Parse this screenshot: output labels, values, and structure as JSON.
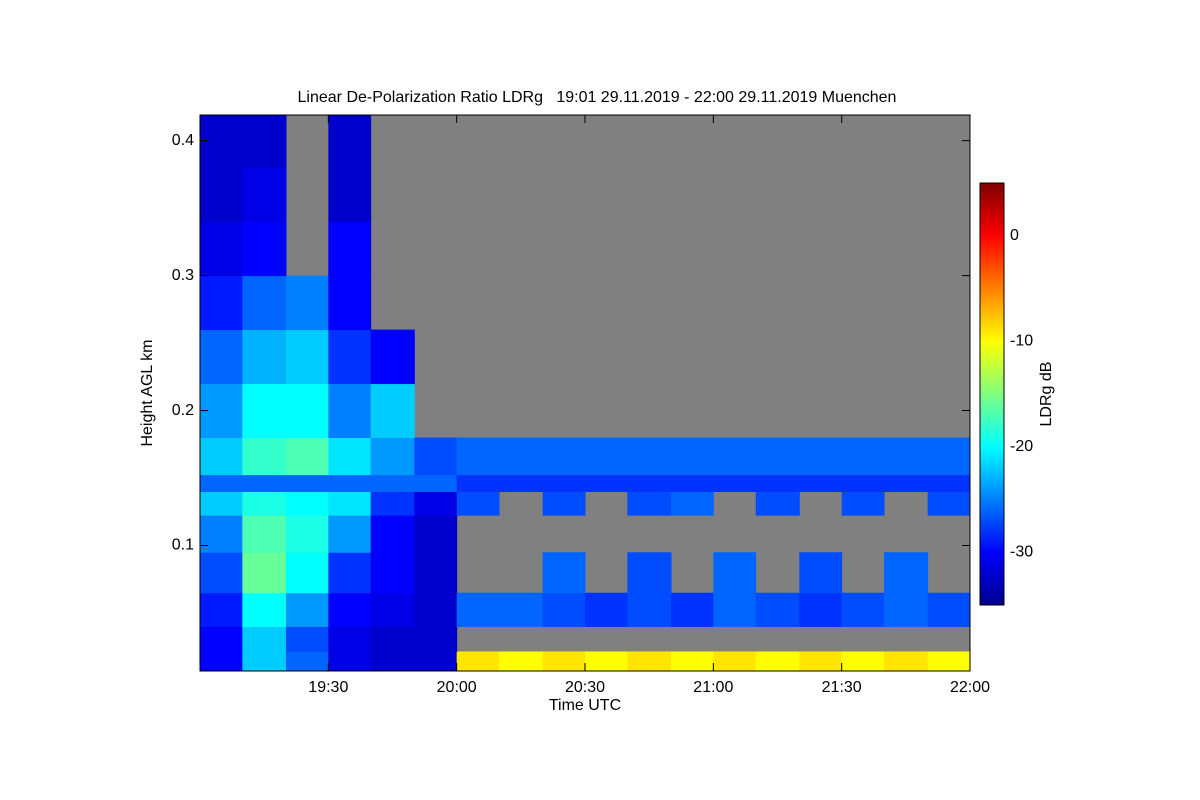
{
  "chart_data": {
    "type": "heatmap",
    "title": "Linear De-Polarization Ratio LDRg   19:01 29.11.2019 - 22:00 29.11.2019 Muenchen",
    "x_label": "Time UTC",
    "y_label": "Height AGL km",
    "colorbar_label": "LDRg dB",
    "x": [
      19.08,
      19.25,
      19.42,
      19.58,
      19.75,
      19.92,
      20.08,
      20.25,
      20.42,
      20.58,
      20.75,
      20.92,
      21.08,
      21.25,
      21.42,
      21.58,
      21.75,
      21.92
    ],
    "y": [
      0.013,
      0.03,
      0.05,
      0.08,
      0.11,
      0.135,
      0.145,
      0.16,
      0.2,
      0.24,
      0.28,
      0.32,
      0.36,
      0.4
    ],
    "z": [
      [
        -30,
        -22,
        -26,
        -31,
        -32,
        -32,
        -9,
        -10,
        -9,
        -10,
        -9,
        -10,
        -9,
        -10,
        -9,
        -10,
        -9,
        -10
      ],
      [
        -30,
        -22,
        -27,
        -31,
        -32,
        -32,
        null,
        null,
        null,
        null,
        null,
        null,
        null,
        null,
        null,
        null,
        null,
        null
      ],
      [
        -29,
        -20,
        -24,
        -30,
        -31,
        -32,
        -26,
        -26,
        -27,
        -28,
        -27,
        -28,
        -26,
        -27,
        -28,
        -27,
        -26,
        -27
      ],
      [
        -27,
        -16,
        -20,
        -28,
        -30,
        -32,
        null,
        null,
        -26,
        null,
        -27,
        null,
        -26,
        null,
        -27,
        null,
        -26,
        null
      ],
      [
        -25,
        -17,
        -19,
        -24,
        -30,
        -32,
        null,
        null,
        null,
        null,
        null,
        null,
        null,
        null,
        null,
        null,
        null,
        null
      ],
      [
        -22,
        -19,
        -20,
        -21,
        -28,
        -31,
        -27,
        null,
        -27,
        null,
        -27,
        -26,
        null,
        -27,
        null,
        -27,
        null,
        -27
      ],
      [
        -26,
        -26,
        -26,
        -26,
        -26,
        -26,
        -28,
        -28,
        -28,
        -28,
        -28,
        -28,
        -28,
        -28,
        -28,
        -28,
        -28,
        -28
      ],
      [
        -22,
        -18,
        -17,
        -21,
        -24,
        -27,
        -26,
        -26,
        -26,
        -26,
        -26,
        -26,
        -26,
        -26,
        -26,
        -26,
        -26,
        -26
      ],
      [
        -24,
        -20,
        -20,
        -25,
        -22,
        null,
        null,
        null,
        null,
        null,
        null,
        null,
        null,
        null,
        null,
        null,
        null,
        null
      ],
      [
        -26,
        -23,
        -22,
        -28,
        -30,
        null,
        null,
        null,
        null,
        null,
        null,
        null,
        null,
        null,
        null,
        null,
        null,
        null
      ],
      [
        -29,
        -26,
        -25,
        -30,
        null,
        null,
        null,
        null,
        null,
        null,
        null,
        null,
        null,
        null,
        null,
        null,
        null,
        null
      ],
      [
        -31,
        -30,
        null,
        -30,
        null,
        null,
        null,
        null,
        null,
        null,
        null,
        null,
        null,
        null,
        null,
        null,
        null,
        null
      ],
      [
        -32,
        -31,
        null,
        -32,
        null,
        null,
        null,
        null,
        null,
        null,
        null,
        null,
        null,
        null,
        null,
        null,
        null,
        null
      ],
      [
        -32,
        -32,
        null,
        -32,
        null,
        null,
        null,
        null,
        null,
        null,
        null,
        null,
        null,
        null,
        null,
        null,
        null,
        null
      ]
    ],
    "missing_color": "#808080",
    "xlim": [
      19.0,
      22.0
    ],
    "xticks": [
      {
        "value": 19.5,
        "label": "19:30"
      },
      {
        "value": 20.0,
        "label": "20:00"
      },
      {
        "value": 20.5,
        "label": "20:30"
      },
      {
        "value": 21.0,
        "label": "21:00"
      },
      {
        "value": 21.5,
        "label": "21:30"
      },
      {
        "value": 22.0,
        "label": "22:00"
      }
    ],
    "ylim": [
      0.007,
      0.419
    ],
    "yticks": [
      0.1,
      0.2,
      0.3,
      0.4
    ],
    "clim": [
      -35,
      5
    ],
    "cticks": [
      0,
      -10,
      -20,
      -30
    ],
    "colormap": "jet"
  }
}
